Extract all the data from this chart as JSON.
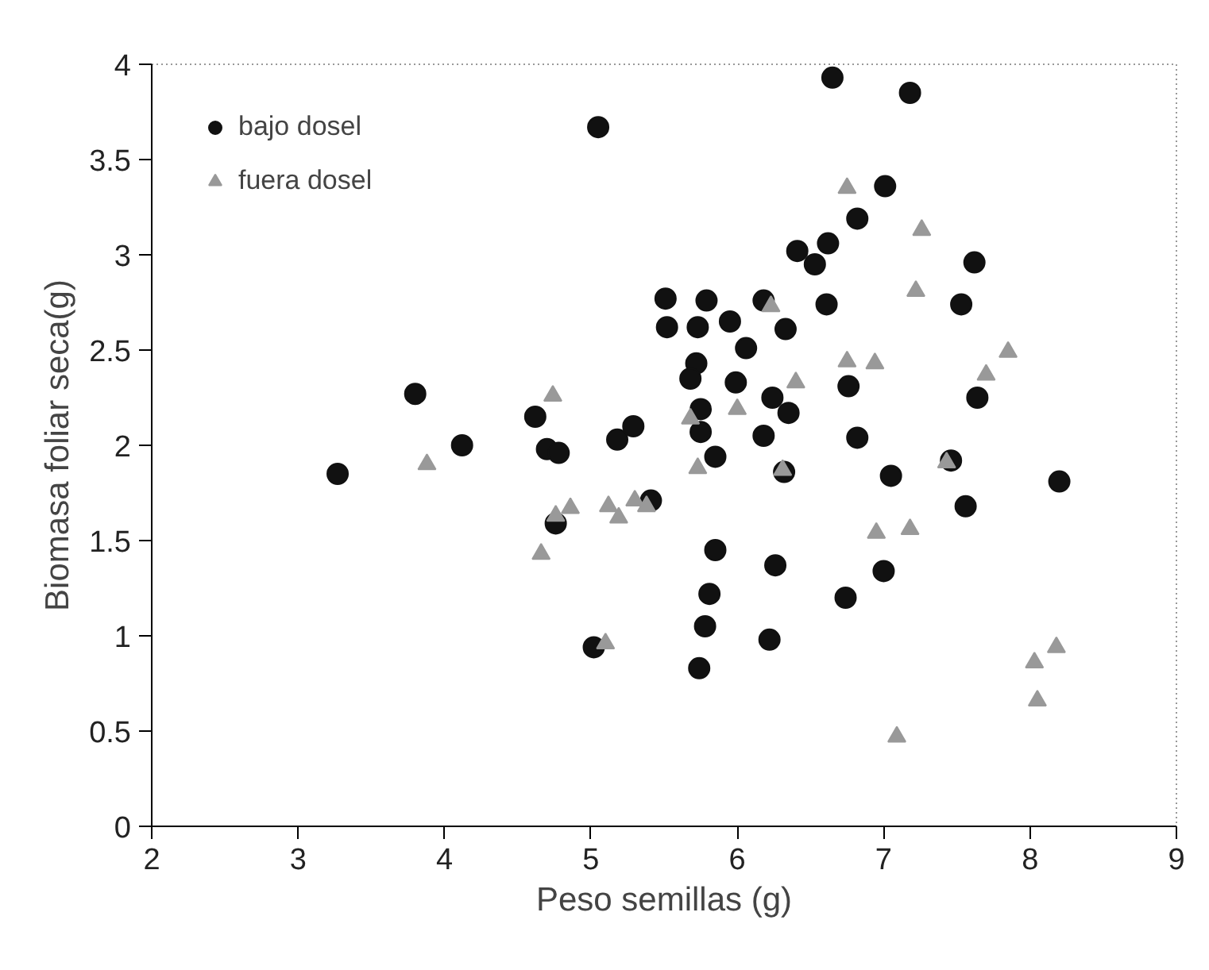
{
  "chart_data": {
    "type": "scatter",
    "xlabel": "Peso semillas (g)",
    "ylabel": "Biomasa foliar seca(g)",
    "xlim": [
      2,
      9
    ],
    "ylim": [
      0,
      4
    ],
    "xticks": [
      2,
      3,
      4,
      5,
      6,
      7,
      8,
      9
    ],
    "yticks": [
      0,
      0.5,
      1,
      1.5,
      2,
      2.5,
      3,
      3.5,
      4
    ],
    "grid": false,
    "legend": "top left",
    "series": [
      {
        "name": "bajo dosel",
        "color": "#111111",
        "marker": "circle",
        "x": [
          3.27,
          3.8,
          4.12,
          4.62,
          4.7,
          4.78,
          4.76,
          5.18,
          5.29,
          5.41,
          5.02,
          5.51,
          5.79,
          5.52,
          5.73,
          5.95,
          6.06,
          5.72,
          5.68,
          5.99,
          5.75,
          5.75,
          5.85,
          5.85,
          5.81,
          5.78,
          5.74,
          5.05,
          6.65,
          7.18,
          7.01,
          6.82,
          6.41,
          6.62,
          6.53,
          7.62,
          7.53,
          6.61,
          6.18,
          6.33,
          6.24,
          6.35,
          6.18,
          6.76,
          6.82,
          7.64,
          6.32,
          7.05,
          7.46,
          7.56,
          8.2,
          6.26,
          7.0,
          6.74,
          6.22
        ],
        "values": [
          1.85,
          2.27,
          2.0,
          2.15,
          1.98,
          1.96,
          1.59,
          2.03,
          2.1,
          1.71,
          0.94,
          2.77,
          2.76,
          2.62,
          2.62,
          2.65,
          2.51,
          2.43,
          2.35,
          2.33,
          2.19,
          2.07,
          1.94,
          1.45,
          1.22,
          1.05,
          0.83,
          3.67,
          3.93,
          3.85,
          3.36,
          3.19,
          3.02,
          3.06,
          2.95,
          2.96,
          2.74,
          2.74,
          2.76,
          2.61,
          2.25,
          2.17,
          2.05,
          2.31,
          2.04,
          2.25,
          1.86,
          1.84,
          1.92,
          1.68,
          1.81,
          1.37,
          1.34,
          1.2,
          0.98
        ]
      },
      {
        "name": "fuera dosel",
        "color": "#999999",
        "marker": "triangle",
        "x": [
          4.74,
          3.88,
          4.76,
          4.86,
          4.66,
          5.12,
          5.19,
          5.3,
          5.38,
          5.1,
          5.68,
          5.73,
          6.0,
          6.75,
          7.26,
          7.22,
          6.23,
          6.75,
          6.94,
          6.4,
          7.85,
          7.7,
          6.31,
          7.43,
          6.95,
          7.18,
          8.18,
          8.03,
          8.05,
          7.09
        ],
        "values": [
          2.26,
          1.9,
          1.63,
          1.67,
          1.43,
          1.68,
          1.62,
          1.71,
          1.68,
          0.96,
          2.14,
          1.88,
          2.19,
          3.35,
          3.13,
          2.81,
          2.73,
          2.44,
          2.43,
          2.33,
          2.49,
          2.37,
          1.87,
          1.91,
          1.54,
          1.56,
          0.94,
          0.86,
          0.66,
          0.47
        ]
      }
    ]
  }
}
